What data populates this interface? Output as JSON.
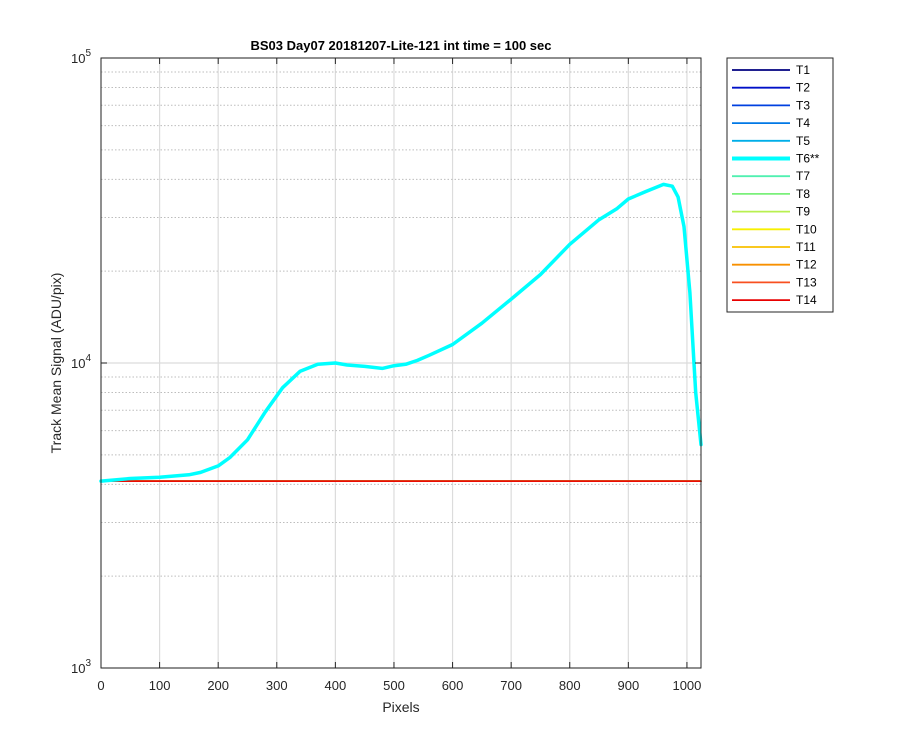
{
  "chart_data": {
    "type": "line",
    "title": "BS03 Day07 20181207-Lite-121 int time = 100 sec",
    "xlabel": "Pixels",
    "ylabel": "Track Mean Signal (ADU/pix)",
    "xlim": [
      0,
      1024
    ],
    "ylim": [
      1000,
      100000
    ],
    "yscale": "log",
    "grid": true,
    "x_ticks": [
      0,
      100,
      200,
      300,
      400,
      500,
      600,
      700,
      800,
      900,
      1000
    ],
    "y_ticks": [
      {
        "value": 1000,
        "base": "10",
        "exp": "3"
      },
      {
        "value": 10000,
        "base": "10",
        "exp": "4"
      },
      {
        "value": 100000,
        "base": "10",
        "exp": "5"
      }
    ],
    "legend_position": "outside-right",
    "flat_level": 4100,
    "series": [
      {
        "name": "T1",
        "color": "#000080"
      },
      {
        "name": "T2",
        "color": "#0010c8"
      },
      {
        "name": "T3",
        "color": "#0040e0"
      },
      {
        "name": "T4",
        "color": "#0078e6"
      },
      {
        "name": "T5",
        "color": "#00aee8"
      },
      {
        "name": "T6**",
        "color": "#00ffff",
        "highlight": true,
        "points": [
          [
            0,
            4100
          ],
          [
            50,
            4180
          ],
          [
            100,
            4220
          ],
          [
            150,
            4300
          ],
          [
            170,
            4380
          ],
          [
            200,
            4600
          ],
          [
            220,
            4900
          ],
          [
            250,
            5600
          ],
          [
            280,
            6900
          ],
          [
            310,
            8300
          ],
          [
            340,
            9400
          ],
          [
            370,
            9900
          ],
          [
            400,
            10000
          ],
          [
            420,
            9850
          ],
          [
            450,
            9750
          ],
          [
            480,
            9600
          ],
          [
            500,
            9800
          ],
          [
            520,
            9900
          ],
          [
            540,
            10200
          ],
          [
            560,
            10600
          ],
          [
            600,
            11500
          ],
          [
            650,
            13500
          ],
          [
            700,
            16200
          ],
          [
            750,
            19500
          ],
          [
            800,
            24500
          ],
          [
            850,
            29500
          ],
          [
            880,
            32000
          ],
          [
            900,
            34500
          ],
          [
            930,
            36500
          ],
          [
            960,
            38500
          ],
          [
            975,
            38000
          ],
          [
            985,
            35000
          ],
          [
            995,
            28000
          ],
          [
            1005,
            17000
          ],
          [
            1015,
            8000
          ],
          [
            1024,
            5400
          ]
        ]
      },
      {
        "name": "T7",
        "color": "#50f0b0"
      },
      {
        "name": "T8",
        "color": "#7af07a"
      },
      {
        "name": "T9",
        "color": "#b8f050"
      },
      {
        "name": "T10",
        "color": "#f8f000"
      },
      {
        "name": "T11",
        "color": "#f8c000"
      },
      {
        "name": "T12",
        "color": "#f89000"
      },
      {
        "name": "T13",
        "color": "#f85020"
      },
      {
        "name": "T14",
        "color": "#e80000"
      }
    ]
  }
}
